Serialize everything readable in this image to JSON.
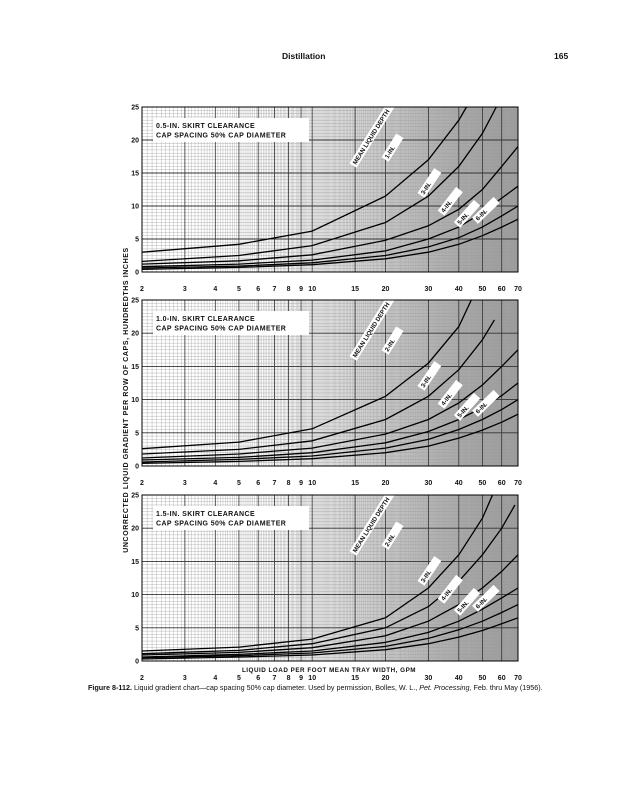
{
  "page": {
    "running_head": "Distillation",
    "page_number": "165"
  },
  "caption": {
    "figure_label": "Figure 8-112.",
    "text": "Liquid gradient chart—cap spacing 50% cap diameter. Used by permission, Bolles, W. L., ",
    "journal": "Pet. Processing,",
    "tail": " Feb. thru May (1956)."
  },
  "ylabel": "UNCORRECTED LIQUID GRADIENT PER ROW OF CAPS, HUNDREDTHS INCHES",
  "xlabel": "LIQUID LOAD PER FOOT MEAN TRAY WIDTH, GPM",
  "x_ticks": [
    "2",
    "3",
    "4",
    "5",
    "6",
    "7",
    "8",
    "9",
    "10",
    "15",
    "20",
    "30",
    "40",
    "50",
    "60",
    "70"
  ],
  "y_ticks": [
    "0",
    "5",
    "10",
    "15",
    "20",
    "25"
  ],
  "chart_data": [
    {
      "type": "line",
      "scale": {
        "x": "log",
        "y": "linear"
      },
      "xlim": [
        2,
        70
      ],
      "ylim": [
        0,
        25
      ],
      "legend": {
        "lines": [
          "0.5-IN. SKIRT CLEARANCE",
          "CAP SPACING 50% CAP DIAMETER"
        ],
        "placement": "top-left"
      },
      "series": [
        {
          "name": "MEAN LIQUID DEPTH 1-IN.",
          "points": [
            [
              2,
              3.0
            ],
            [
              5,
              4.2
            ],
            [
              10,
              6.2
            ],
            [
              20,
              11.5
            ],
            [
              30,
              17.0
            ],
            [
              40,
              23.0
            ],
            [
              43,
              25.0
            ]
          ]
        },
        {
          "name": "2-IN.",
          "points": [
            [
              2,
              1.6
            ],
            [
              5,
              2.5
            ],
            [
              10,
              4.0
            ],
            [
              20,
              7.5
            ],
            [
              30,
              11.5
            ],
            [
              40,
              16.0
            ],
            [
              50,
              21.0
            ],
            [
              57,
              25.0
            ]
          ]
        },
        {
          "name": "3-IN.",
          "points": [
            [
              2,
              1.2
            ],
            [
              5,
              1.7
            ],
            [
              10,
              2.6
            ],
            [
              20,
              4.8
            ],
            [
              30,
              7.0
            ],
            [
              40,
              9.5
            ],
            [
              50,
              12.5
            ],
            [
              60,
              16.0
            ],
            [
              70,
              19.0
            ]
          ]
        },
        {
          "name": "4-IN.",
          "points": [
            [
              2,
              0.8
            ],
            [
              5,
              1.2
            ],
            [
              10,
              1.8
            ],
            [
              20,
              3.2
            ],
            [
              30,
              5.0
            ],
            [
              40,
              6.8
            ],
            [
              50,
              9.0
            ],
            [
              60,
              11.2
            ],
            [
              70,
              13.0
            ]
          ]
        },
        {
          "name": "5-IN.",
          "points": [
            [
              2,
              0.6
            ],
            [
              5,
              0.9
            ],
            [
              10,
              1.4
            ],
            [
              20,
              2.5
            ],
            [
              30,
              3.8
            ],
            [
              40,
              5.2
            ],
            [
              50,
              6.8
            ],
            [
              60,
              8.5
            ],
            [
              70,
              10.0
            ]
          ]
        },
        {
          "name": "6-IN.",
          "points": [
            [
              2,
              0.4
            ],
            [
              5,
              0.7
            ],
            [
              10,
              1.1
            ],
            [
              20,
              2.0
            ],
            [
              30,
              3.0
            ],
            [
              40,
              4.2
            ],
            [
              50,
              5.5
            ],
            [
              60,
              6.8
            ],
            [
              70,
              8.0
            ]
          ]
        }
      ],
      "curve_labels": [
        "MEAN LIQUID DEPTH",
        "1-IN.",
        "3-IN.",
        "4-IN.",
        "5-IN.",
        "6-IN."
      ]
    },
    {
      "type": "line",
      "scale": {
        "x": "log",
        "y": "linear"
      },
      "xlim": [
        2,
        70
      ],
      "ylim": [
        0,
        25
      ],
      "legend": {
        "lines": [
          "1.0-IN. SKIRT CLEARANCE",
          "CAP SPACING 50% CAP DIAMETER"
        ],
        "placement": "top-left"
      },
      "series": [
        {
          "name": "MEAN LIQUID DEPTH 1-IN.",
          "points": [
            [
              2,
              2.6
            ],
            [
              5,
              3.6
            ],
            [
              10,
              5.6
            ],
            [
              20,
              10.5
            ],
            [
              30,
              15.5
            ],
            [
              40,
              21.0
            ],
            [
              45,
              25.0
            ]
          ]
        },
        {
          "name": "2-IN.",
          "points": [
            [
              2,
              1.8
            ],
            [
              5,
              2.5
            ],
            [
              10,
              3.8
            ],
            [
              20,
              7.0
            ],
            [
              30,
              10.5
            ],
            [
              40,
              14.5
            ],
            [
              50,
              19.0
            ],
            [
              56,
              22.0
            ]
          ]
        },
        {
          "name": "3-IN.",
          "points": [
            [
              2,
              1.2
            ],
            [
              5,
              1.8
            ],
            [
              10,
              2.7
            ],
            [
              20,
              4.8
            ],
            [
              30,
              7.0
            ],
            [
              40,
              9.5
            ],
            [
              50,
              12.2
            ],
            [
              60,
              15.0
            ],
            [
              70,
              17.5
            ]
          ]
        },
        {
          "name": "4-IN.",
          "points": [
            [
              2,
              0.9
            ],
            [
              5,
              1.3
            ],
            [
              10,
              2.0
            ],
            [
              20,
              3.5
            ],
            [
              30,
              5.2
            ],
            [
              40,
              7.0
            ],
            [
              50,
              8.8
            ],
            [
              60,
              10.6
            ],
            [
              70,
              12.5
            ]
          ]
        },
        {
          "name": "5-IN.",
          "points": [
            [
              2,
              0.6
            ],
            [
              5,
              1.0
            ],
            [
              10,
              1.5
            ],
            [
              20,
              2.7
            ],
            [
              30,
              4.0
            ],
            [
              40,
              5.5
            ],
            [
              50,
              7.0
            ],
            [
              60,
              8.5
            ],
            [
              70,
              10.0
            ]
          ]
        },
        {
          "name": "6-IN.",
          "points": [
            [
              2,
              0.4
            ],
            [
              5,
              0.7
            ],
            [
              10,
              1.1
            ],
            [
              20,
              2.0
            ],
            [
              30,
              3.0
            ],
            [
              40,
              4.2
            ],
            [
              50,
              5.4
            ],
            [
              60,
              6.6
            ],
            [
              70,
              7.8
            ]
          ]
        }
      ],
      "curve_labels": [
        "MEAN LIQUID DEPTH",
        "2-IN.",
        "3-IN.",
        "4-IN.",
        "5-IN.",
        "6-IN."
      ]
    },
    {
      "type": "line",
      "scale": {
        "x": "log",
        "y": "linear"
      },
      "xlim": [
        2,
        70
      ],
      "ylim": [
        0,
        25
      ],
      "legend": {
        "lines": [
          "1.5-IN. SKIRT CLEARANCE",
          "CAP SPACING 50% CAP DIAMETER"
        ],
        "placement": "top-left"
      },
      "series": [
        {
          "name": "MEAN LIQUID DEPTH 1-IN.",
          "points": [
            [
              2,
              1.5
            ],
            [
              5,
              2.1
            ],
            [
              10,
              3.3
            ],
            [
              20,
              6.5
            ],
            [
              30,
              11.0
            ],
            [
              40,
              16.0
            ],
            [
              50,
              21.5
            ],
            [
              55,
              25.0
            ]
          ]
        },
        {
          "name": "2-IN.",
          "points": [
            [
              2,
              1.1
            ],
            [
              5,
              1.6
            ],
            [
              10,
              2.6
            ],
            [
              20,
              5.0
            ],
            [
              30,
              8.2
            ],
            [
              40,
              12.0
            ],
            [
              50,
              16.0
            ],
            [
              60,
              20.0
            ],
            [
              68,
              23.5
            ]
          ]
        },
        {
          "name": "3-IN.",
          "points": [
            [
              2,
              0.9
            ],
            [
              5,
              1.3
            ],
            [
              10,
              2.0
            ],
            [
              20,
              3.8
            ],
            [
              30,
              6.0
            ],
            [
              40,
              8.5
            ],
            [
              50,
              11.0
            ],
            [
              60,
              13.5
            ],
            [
              70,
              16.0
            ]
          ]
        },
        {
          "name": "4-IN.",
          "points": [
            [
              2,
              0.6
            ],
            [
              5,
              1.0
            ],
            [
              10,
              1.5
            ],
            [
              20,
              2.8
            ],
            [
              30,
              4.3
            ],
            [
              40,
              6.0
            ],
            [
              50,
              7.8
            ],
            [
              60,
              9.5
            ],
            [
              70,
              11.0
            ]
          ]
        },
        {
          "name": "5-IN.",
          "points": [
            [
              2,
              0.5
            ],
            [
              5,
              0.8
            ],
            [
              10,
              1.2
            ],
            [
              20,
              2.2
            ],
            [
              30,
              3.4
            ],
            [
              40,
              4.7
            ],
            [
              50,
              6.0
            ],
            [
              60,
              7.3
            ],
            [
              70,
              8.5
            ]
          ]
        },
        {
          "name": "6-IN.",
          "points": [
            [
              2,
              0.3
            ],
            [
              5,
              0.6
            ],
            [
              10,
              0.9
            ],
            [
              20,
              1.7
            ],
            [
              30,
              2.6
            ],
            [
              40,
              3.6
            ],
            [
              50,
              4.6
            ],
            [
              60,
              5.6
            ],
            [
              70,
              6.5
            ]
          ]
        }
      ],
      "curve_labels": [
        "MEAN LIQUID DEPTH",
        "2-IN.",
        "3-IN.",
        "4-IN.",
        "5-IN.",
        "6-IN."
      ]
    }
  ]
}
